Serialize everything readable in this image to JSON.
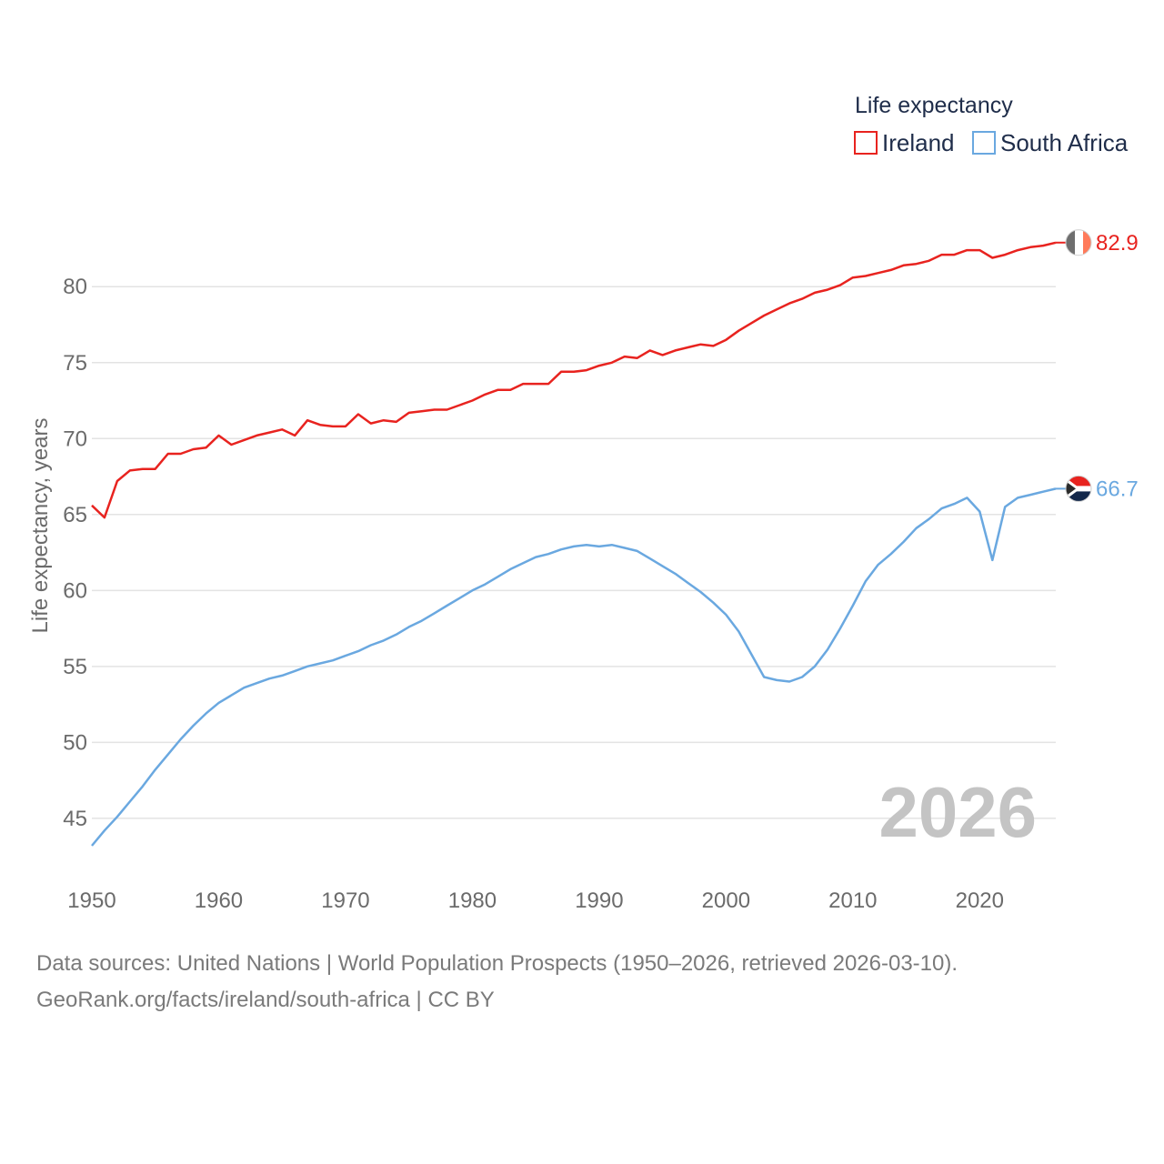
{
  "chart_data": {
    "type": "line",
    "legend_title": "Life expectancy",
    "ylabel": "Life expectancy, years",
    "ylim": [
      42,
      86
    ],
    "xlim": [
      1950,
      2026
    ],
    "yticks": [
      45,
      50,
      55,
      60,
      65,
      70,
      75,
      80
    ],
    "xticks": [
      1950,
      1960,
      1970,
      1980,
      1990,
      2000,
      2010,
      2020
    ],
    "year_label": "2026",
    "series": [
      {
        "name": "Ireland",
        "color": "#e8231f",
        "end_label": "82.9",
        "flag": "ireland-flag",
        "x": [
          1950,
          1951,
          1952,
          1953,
          1954,
          1955,
          1956,
          1957,
          1958,
          1959,
          1960,
          1961,
          1962,
          1963,
          1964,
          1965,
          1966,
          1967,
          1968,
          1969,
          1970,
          1971,
          1972,
          1973,
          1974,
          1975,
          1976,
          1977,
          1978,
          1979,
          1980,
          1981,
          1982,
          1983,
          1984,
          1985,
          1986,
          1987,
          1988,
          1989,
          1990,
          1991,
          1992,
          1993,
          1994,
          1995,
          1996,
          1997,
          1998,
          1999,
          2000,
          2001,
          2002,
          2003,
          2004,
          2005,
          2006,
          2007,
          2008,
          2009,
          2010,
          2011,
          2012,
          2013,
          2014,
          2015,
          2016,
          2017,
          2018,
          2019,
          2020,
          2021,
          2022,
          2023,
          2024,
          2025,
          2026
        ],
        "values": [
          65.6,
          64.8,
          67.2,
          67.9,
          68.0,
          68.0,
          69.0,
          69.0,
          69.3,
          69.4,
          70.2,
          69.6,
          69.9,
          70.2,
          70.4,
          70.6,
          70.2,
          71.2,
          70.9,
          70.8,
          70.8,
          71.6,
          71.0,
          71.2,
          71.1,
          71.7,
          71.8,
          71.9,
          71.9,
          72.2,
          72.5,
          72.9,
          73.2,
          73.2,
          73.6,
          73.6,
          73.6,
          74.4,
          74.4,
          74.5,
          74.8,
          75.0,
          75.4,
          75.3,
          75.8,
          75.5,
          75.8,
          76.0,
          76.2,
          76.1,
          76.5,
          77.1,
          77.6,
          78.1,
          78.5,
          78.9,
          79.2,
          79.6,
          79.8,
          80.1,
          80.6,
          80.7,
          80.9,
          81.1,
          81.4,
          81.5,
          81.7,
          82.1,
          82.1,
          82.4,
          82.4,
          81.9,
          82.1,
          82.4,
          82.6,
          82.7,
          82.9
        ]
      },
      {
        "name": "South Africa",
        "color": "#6aa8e0",
        "end_label": "66.7",
        "flag": "south-africa-flag",
        "x": [
          1950,
          1951,
          1952,
          1953,
          1954,
          1955,
          1956,
          1957,
          1958,
          1959,
          1960,
          1961,
          1962,
          1963,
          1964,
          1965,
          1966,
          1967,
          1968,
          1969,
          1970,
          1971,
          1972,
          1973,
          1974,
          1975,
          1976,
          1977,
          1978,
          1979,
          1980,
          1981,
          1982,
          1983,
          1984,
          1985,
          1986,
          1987,
          1988,
          1989,
          1990,
          1991,
          1992,
          1993,
          1994,
          1995,
          1996,
          1997,
          1998,
          1999,
          2000,
          2001,
          2002,
          2003,
          2004,
          2005,
          2006,
          2007,
          2008,
          2009,
          2010,
          2011,
          2012,
          2013,
          2014,
          2015,
          2016,
          2017,
          2018,
          2019,
          2020,
          2021,
          2022,
          2023,
          2024,
          2025,
          2026
        ],
        "values": [
          43.2,
          44.2,
          45.1,
          46.1,
          47.1,
          48.2,
          49.2,
          50.2,
          51.1,
          51.9,
          52.6,
          53.1,
          53.6,
          53.9,
          54.2,
          54.4,
          54.7,
          55.0,
          55.2,
          55.4,
          55.7,
          56.0,
          56.4,
          56.7,
          57.1,
          57.6,
          58.0,
          58.5,
          59.0,
          59.5,
          60.0,
          60.4,
          60.9,
          61.4,
          61.8,
          62.2,
          62.4,
          62.7,
          62.9,
          63.0,
          62.9,
          63.0,
          62.8,
          62.6,
          62.1,
          61.6,
          61.1,
          60.5,
          59.9,
          59.2,
          58.4,
          57.3,
          55.8,
          54.3,
          54.1,
          54.0,
          54.3,
          55.0,
          56.1,
          57.5,
          59.0,
          60.6,
          61.7,
          62.4,
          63.2,
          64.1,
          64.7,
          65.4,
          65.7,
          66.1,
          65.2,
          62.0,
          65.5,
          66.1,
          66.3,
          66.5,
          66.7
        ]
      }
    ]
  },
  "footer": {
    "line1": "Data sources: United Nations | World Population Prospects (1950–2026, retrieved 2026-03-10).",
    "line2": "GeoRank.org/facts/ireland/south-africa | CC BY"
  }
}
